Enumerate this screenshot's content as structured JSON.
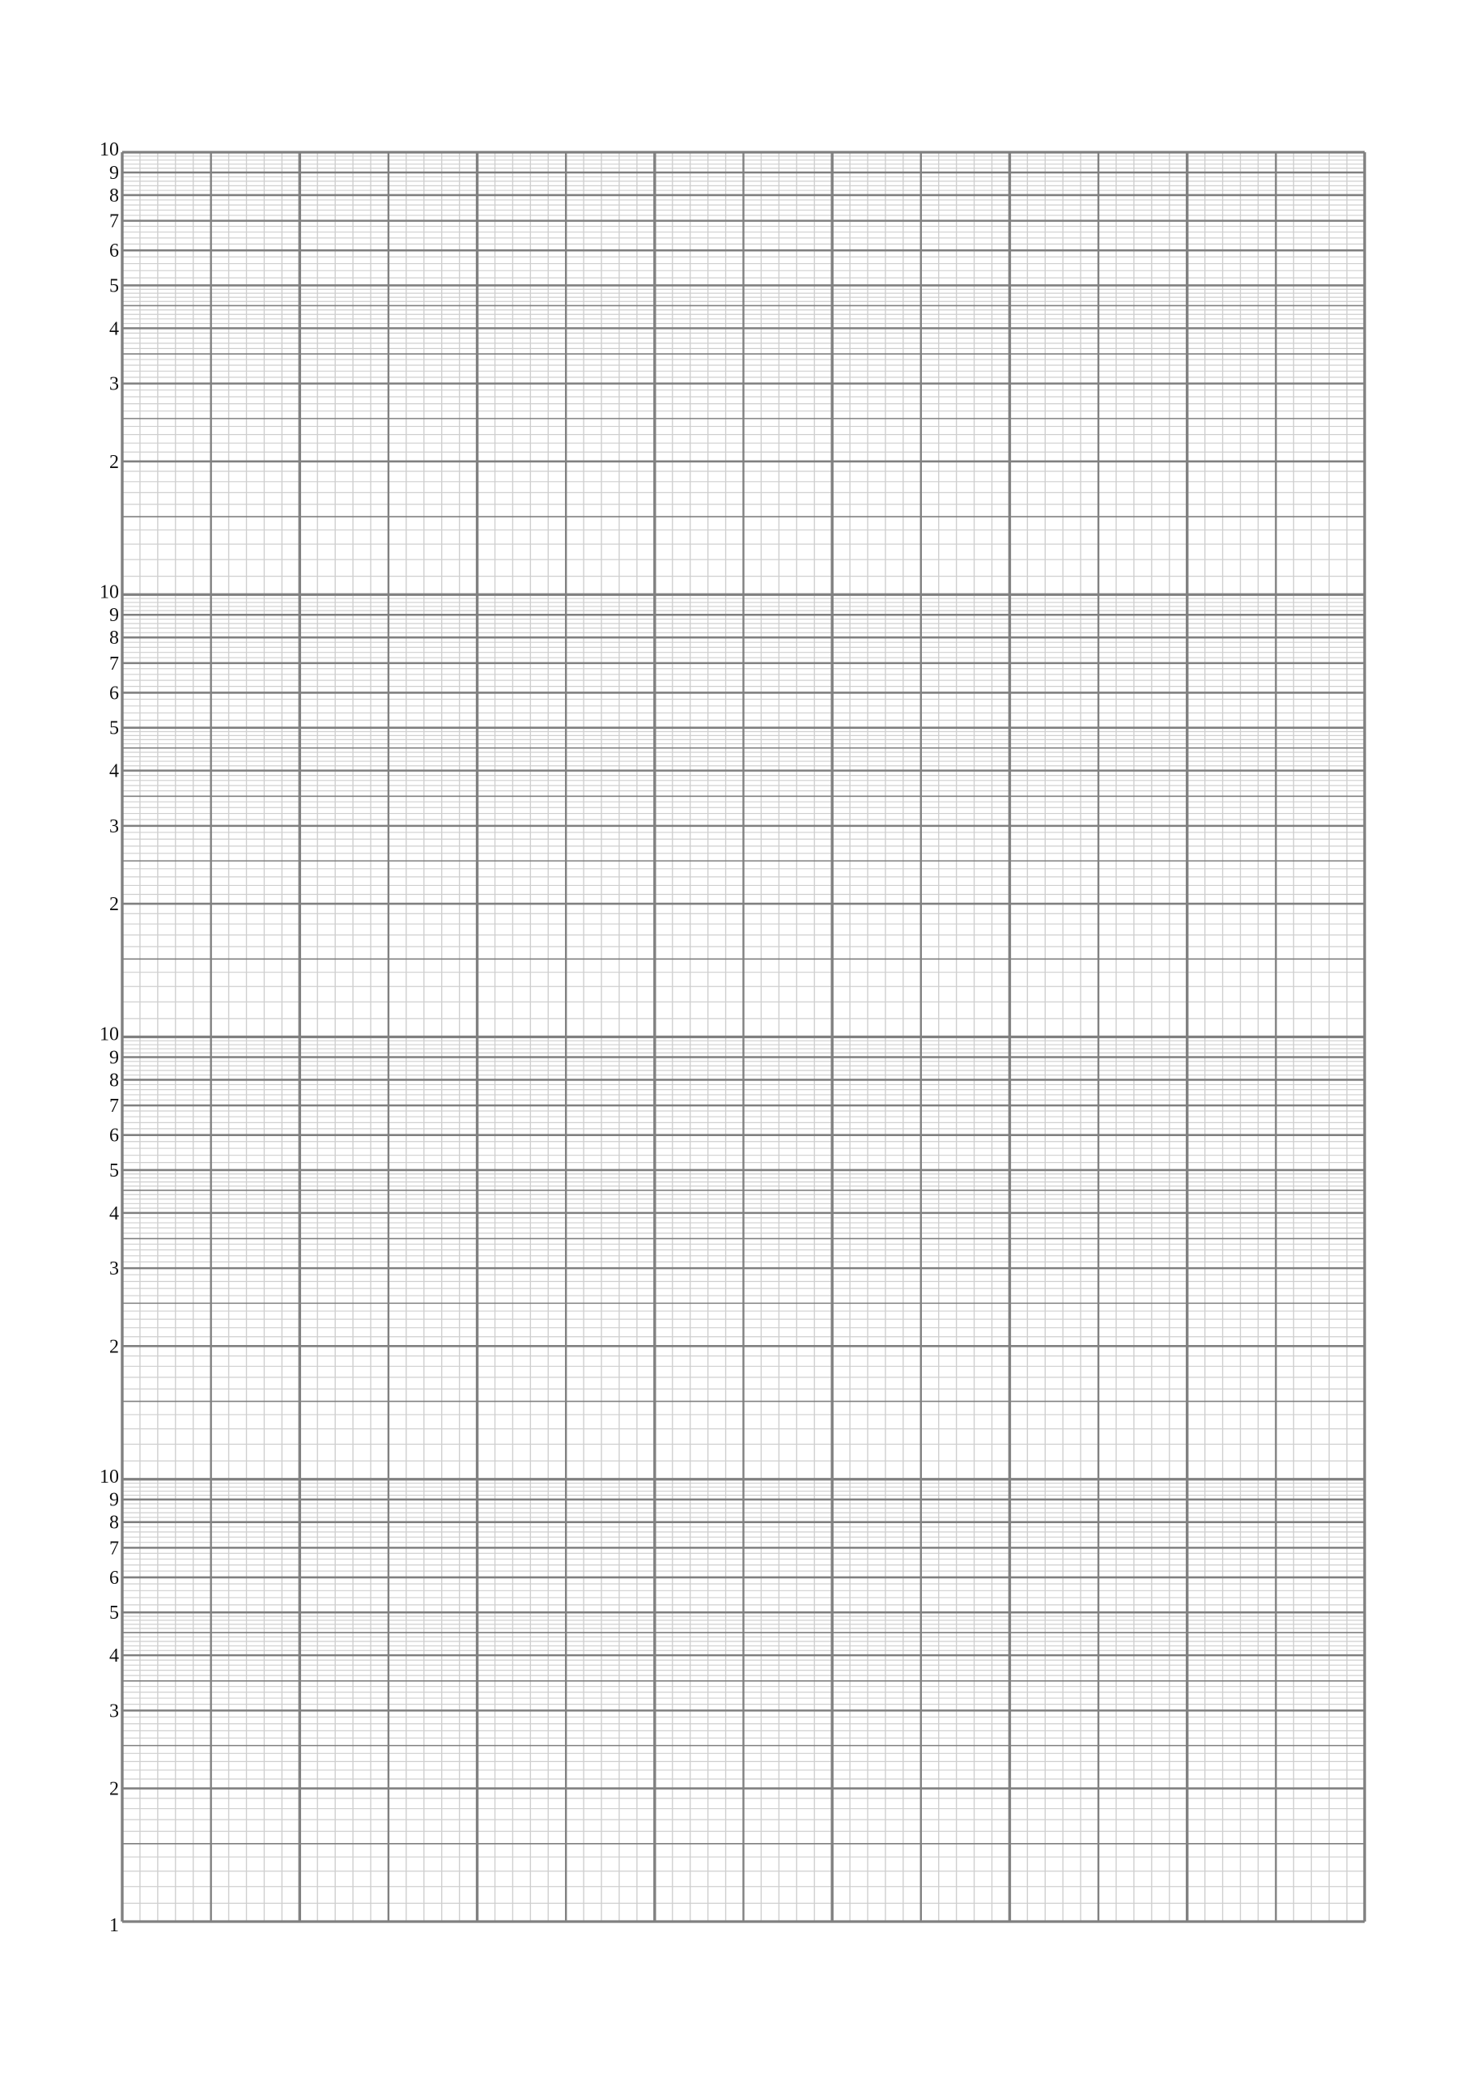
{
  "chart_data": {
    "type": "line",
    "title": "",
    "xlabel": "",
    "ylabel": "",
    "y_scale": "log",
    "y_decades": 4,
    "ylim": [
      1,
      10000
    ],
    "y_tick_labels_per_decade": [
      "2",
      "3",
      "4",
      "5",
      "6",
      "7",
      "8",
      "9",
      "10"
    ],
    "y_bottom_label": "1",
    "x_scale": "linear",
    "x_major_divisions": 14,
    "x_minor_per_major": 5,
    "x_tick_labels": [],
    "grid": true,
    "series": [],
    "colors": {
      "grid_major": "#808080",
      "grid_minor": "#cfcfcf",
      "text": "#111111"
    }
  }
}
